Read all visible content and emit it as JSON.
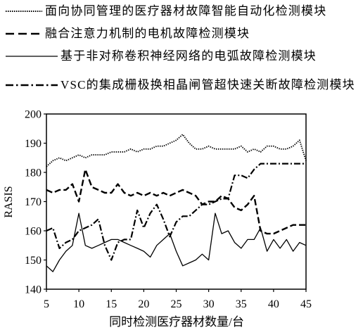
{
  "chart_data": {
    "type": "line",
    "title": "",
    "xlabel": "同时检测医疗器材数量/台",
    "ylabel": "RASIS",
    "xlim": [
      5,
      45
    ],
    "ylim": [
      140,
      200
    ],
    "x_ticks": [
      5,
      10,
      15,
      20,
      25,
      30,
      35,
      40,
      45
    ],
    "y_ticks": [
      140,
      150,
      160,
      170,
      180,
      190,
      200
    ],
    "grid": false,
    "legend_position": "top-left",
    "x": [
      5,
      6,
      7,
      8,
      9,
      10,
      11,
      12,
      13,
      14,
      15,
      16,
      17,
      18,
      19,
      20,
      21,
      22,
      23,
      24,
      25,
      26,
      27,
      28,
      29,
      30,
      31,
      32,
      33,
      34,
      35,
      36,
      37,
      38,
      39,
      40,
      41,
      42,
      43,
      44,
      45
    ],
    "series": [
      {
        "name": "面向协同管理的医疗器材故障智能自动化检测模块",
        "style": "dotted",
        "color": "#000000",
        "values": [
          182,
          184,
          185,
          184,
          185,
          186,
          185,
          186,
          186,
          186,
          187,
          187,
          187,
          188,
          187,
          188,
          188,
          189,
          189,
          190,
          191,
          193,
          190,
          188,
          188,
          189,
          188,
          188,
          188,
          188,
          189,
          187,
          188,
          187,
          189,
          189,
          188,
          188,
          189,
          191,
          184
        ]
      },
      {
        "name": "融合注意力机制的电机故障检测模块",
        "style": "dashed",
        "color": "#000000",
        "values": [
          174,
          173,
          174,
          174,
          176,
          170,
          181,
          175,
          174,
          173,
          173,
          176,
          173,
          172,
          173,
          172,
          173,
          172,
          173,
          172,
          173,
          174,
          173,
          172,
          169,
          170,
          170,
          172,
          171,
          168,
          167,
          169,
          172,
          160,
          159,
          159,
          160,
          161,
          162,
          162,
          162
        ]
      },
      {
        "name": "基于非对称卷积神经网络的电弧故障检测模块",
        "style": "solid",
        "color": "#000000",
        "values": [
          148,
          146,
          150,
          153,
          155,
          166,
          155,
          154,
          155,
          156,
          157,
          157,
          156,
          155,
          154,
          153,
          151,
          155,
          157,
          159,
          153,
          148,
          149,
          150,
          152,
          150,
          166,
          159,
          160,
          156,
          154,
          157,
          157,
          161,
          153,
          157,
          154,
          157,
          153,
          156,
          155
        ]
      },
      {
        "name": "VSC的集成栅极换相晶闸管超快速关断故障检测模块",
        "style": "dash-dot",
        "color": "#000000",
        "values": [
          160,
          161,
          154,
          156,
          157,
          160,
          161,
          162,
          164,
          155,
          150,
          156,
          157,
          157,
          167,
          161,
          166,
          169,
          164,
          158,
          163,
          165,
          165,
          167,
          169,
          169,
          170,
          171,
          171,
          179,
          179,
          178,
          181,
          183,
          183,
          183,
          183,
          183,
          183,
          183,
          183
        ]
      }
    ]
  }
}
